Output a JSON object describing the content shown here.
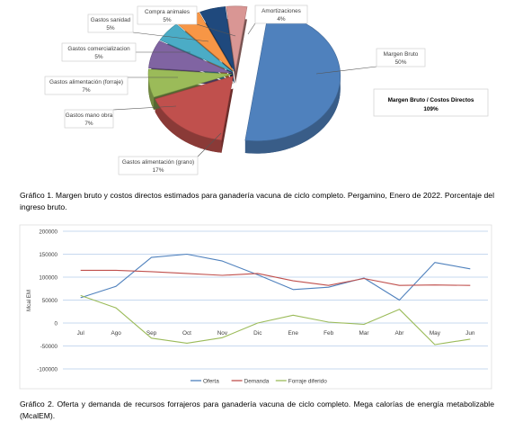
{
  "colors": {
    "page_bg": "#ffffff",
    "callout_border": "#c8c8c8",
    "leader": "#555555",
    "grid": "#8fb2df"
  },
  "chart_data": [
    {
      "type": "pie",
      "style": "3d-exploded",
      "slices": [
        {
          "label": "Margen Bruto",
          "value": 50,
          "value_label": "50%",
          "color": "#4f81bd"
        },
        {
          "label": "Gastos alimentación (grano)",
          "value": 17,
          "value_label": "17%",
          "color": "#c0504d"
        },
        {
          "label": "Gastos mano obra",
          "value": 7,
          "value_label": "7%",
          "color": "#9bbb59"
        },
        {
          "label": "Gastos alimentación (forraje)",
          "value": 7,
          "value_label": "7%",
          "color": "#8064a2"
        },
        {
          "label": "Gastos comercializacion",
          "value": 5,
          "value_label": "5%",
          "color": "#4bacc6"
        },
        {
          "label": "Gastos sanidad",
          "value": 5,
          "value_label": "5%",
          "color": "#f79646"
        },
        {
          "label": "Compra animales",
          "value": 5,
          "value_label": "5%",
          "color": "#1f497d"
        },
        {
          "label": "Amortizaciones",
          "value": 4,
          "value_label": "4%",
          "color": "#d99694"
        }
      ],
      "annotation": {
        "title": "Margen Bruto / Costos Directos",
        "value": "109%"
      }
    },
    {
      "type": "line",
      "categories": [
        "Jul",
        "Ago",
        "Sep",
        "Oct",
        "Nov",
        "Dic",
        "Ene",
        "Feb",
        "Mar",
        "Abr",
        "May",
        "Jun"
      ],
      "ylabel": "Mcal EM",
      "ylim": [
        -100000,
        200000
      ],
      "yticks": [
        "200000",
        "150000",
        "100000",
        "50000",
        "0",
        "-50000",
        "-100000"
      ],
      "ytick_values": [
        200000,
        150000,
        100000,
        50000,
        0,
        -50000,
        -100000
      ],
      "grid": true,
      "legend_position": "bottom",
      "series": [
        {
          "name": "Oferta",
          "color": "#4f81bd",
          "values": [
            55000,
            80000,
            143000,
            150000,
            135000,
            105000,
            73000,
            78000,
            98000,
            50000,
            132000,
            118000
          ]
        },
        {
          "name": "Demanda",
          "color": "#c0504d",
          "values": [
            115000,
            115000,
            112000,
            108000,
            104000,
            108000,
            92000,
            82000,
            97000,
            82000,
            83000,
            82000
          ]
        },
        {
          "name": "Forraje diferido",
          "color": "#9bbb59",
          "values": [
            60000,
            33000,
            -33000,
            -44000,
            -32000,
            0,
            17000,
            2000,
            -3000,
            30000,
            -47000,
            -35000
          ]
        }
      ]
    }
  ],
  "captions": {
    "figure1": "Gráfico 1. Margen bruto y costos directos estimados para ganadería vacuna de ciclo completo. Pergamino, Enero de 2022. Porcentaje del ingreso bruto.",
    "figure2": "Gráfico 2. Oferta y demanda de recursos forrajeros para ganadería vacuna de ciclo completo. Mega calorías de energía metabolizable (McalEM)."
  }
}
